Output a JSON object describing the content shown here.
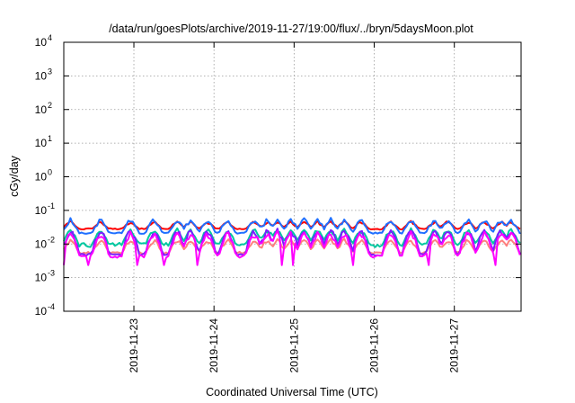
{
  "chart_data": {
    "type": "line",
    "title": "/data/run/goesPlots/archive/2019-11-27/19:00/flux/../bryn/5daysMoon.plot",
    "xlabel": "Coordinated Universal Time (UTC)",
    "ylabel": "cGy/day",
    "yscale": "log",
    "ylim": [
      0.0001,
      10000
    ],
    "y_ticks": [
      {
        "value": 0.0001,
        "base": "10",
        "exp": "-4"
      },
      {
        "value": 0.001,
        "base": "10",
        "exp": "-3"
      },
      {
        "value": 0.01,
        "base": "10",
        "exp": "-2"
      },
      {
        "value": 0.1,
        "base": "10",
        "exp": "-1"
      },
      {
        "value": 1,
        "base": "10",
        "exp": "0"
      },
      {
        "value": 10,
        "base": "10",
        "exp": "1"
      },
      {
        "value": 100,
        "base": "10",
        "exp": "2"
      },
      {
        "value": 1000,
        "base": "10",
        "exp": "3"
      },
      {
        "value": 10000,
        "base": "10",
        "exp": "4"
      }
    ],
    "xlim": [
      "2019-11-22T03:00",
      "2019-11-27T20:00"
    ],
    "x_ticks": [
      "2019-11-23",
      "2019-11-24",
      "2019-11-25",
      "2019-11-26",
      "2019-11-27"
    ],
    "grid": true,
    "legend": "none",
    "series": [
      {
        "color": "#ff0000",
        "base": 0.028,
        "spike_max": 0.05,
        "noise": 0.1
      },
      {
        "color": "#1f6fff",
        "base": 0.021,
        "spike_max": 0.06,
        "noise": 0.1
      },
      {
        "color": "#00c8a0",
        "base": 0.0095,
        "spike_max": 0.03,
        "noise": 0.3
      },
      {
        "color": "#ff7f7f",
        "base": 0.0055,
        "spike_max": 0.015,
        "noise": 0.15
      },
      {
        "color": "#7a1fff",
        "base": 0.0048,
        "spike_max": 0.03,
        "noise": 0.15
      },
      {
        "color": "#ff00ff",
        "base": 0.0043,
        "spike_max": 0.025,
        "noise": 0.2
      }
    ],
    "spike_days": [
      "2019-11-22T05:00",
      "2019-11-22T14:00",
      "2019-11-22T23:00",
      "2019-11-23T06:00",
      "2019-11-23T13:00",
      "2019-11-23T17:00",
      "2019-11-23T22:00",
      "2019-11-24T04:00",
      "2019-11-24T12:00",
      "2019-11-24T16:00",
      "2019-11-24T19:00",
      "2019-11-24T23:00",
      "2019-11-25T03:00",
      "2019-11-25T07:00",
      "2019-11-25T11:00",
      "2019-11-25T15:00",
      "2019-11-25T20:00",
      "2019-11-26T05:00",
      "2019-11-26T11:00",
      "2019-11-26T18:00",
      "2019-11-26T22:00",
      "2019-11-27T04:00",
      "2019-11-27T09:00",
      "2019-11-27T14:00",
      "2019-11-27T17:00"
    ]
  }
}
